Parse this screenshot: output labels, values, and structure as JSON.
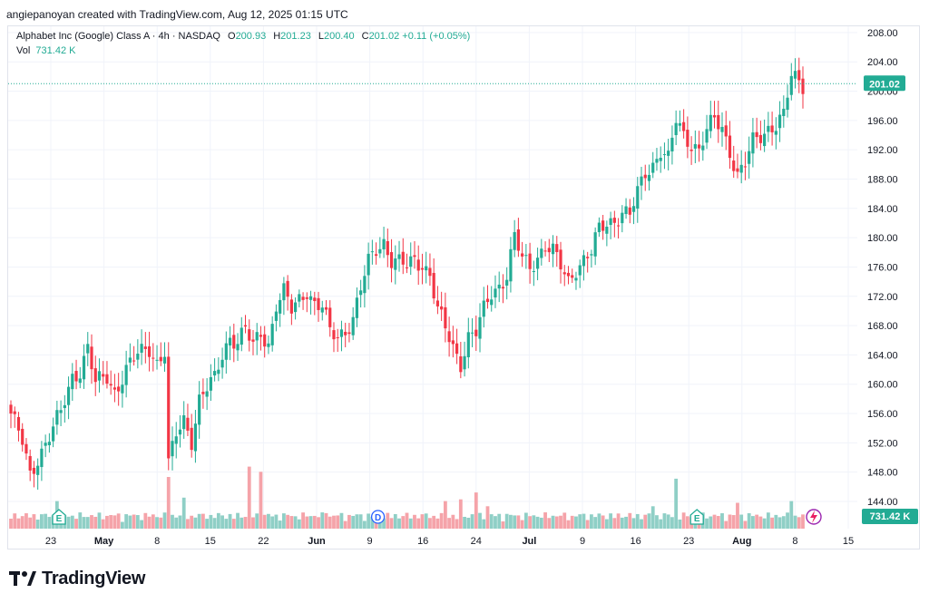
{
  "header": {
    "credit": "angiepanoyan created with TradingView.com, Aug 12, 2025 01:15 UTC"
  },
  "legend": {
    "symbol": "Alphabet Inc (Google) Class A · 4h · NASDAQ",
    "o_label": "O",
    "o_value": "200.93",
    "h_label": "H",
    "h_value": "201.23",
    "l_label": "L",
    "l_value": "200.40",
    "c_label": "C",
    "c_value": "201.02",
    "change": "+0.11 (+0.05%)",
    "vol_label": "Vol",
    "vol_value": "731.42 K"
  },
  "brand": {
    "name": "TradingView"
  },
  "colors": {
    "up": "#22ab94",
    "down": "#f23645",
    "vol_up": "#8fcfc6",
    "vol_down": "#f5a3a9",
    "grid": "#f0f3fa",
    "price_line": "#22ab94"
  },
  "chart_data": {
    "type": "candlestick",
    "title": "Alphabet Inc (Google) Class A · 4h · NASDAQ",
    "ylim": [
      140,
      210
    ],
    "y_ticks": [
      "144.00",
      "148.00",
      "152.00",
      "156.00",
      "160.00",
      "164.00",
      "168.00",
      "172.00",
      "176.00",
      "180.00",
      "184.00",
      "188.00",
      "192.00",
      "196.00",
      "200.00",
      "204.00",
      "208.00"
    ],
    "x_ticks": [
      {
        "label": "23",
        "bold": false
      },
      {
        "label": "May",
        "bold": true
      },
      {
        "label": "8",
        "bold": false
      },
      {
        "label": "15",
        "bold": false
      },
      {
        "label": "22",
        "bold": false
      },
      {
        "label": "Jun",
        "bold": true
      },
      {
        "label": "9",
        "bold": false
      },
      {
        "label": "16",
        "bold": false
      },
      {
        "label": "24",
        "bold": false
      },
      {
        "label": "Jul",
        "bold": true
      },
      {
        "label": "9",
        "bold": false
      },
      {
        "label": "16",
        "bold": false
      },
      {
        "label": "23",
        "bold": false
      },
      {
        "label": "Aug",
        "bold": true
      },
      {
        "label": "8",
        "bold": false
      },
      {
        "label": "15",
        "bold": false
      }
    ],
    "last_price": "201.02",
    "last_volume": "731.42 K",
    "events": [
      {
        "label": "E",
        "kind": "earnings",
        "x_index": 0
      },
      {
        "label": "D",
        "kind": "dividend",
        "x_index": 6
      },
      {
        "label": "E",
        "kind": "earnings",
        "x_index": 12
      }
    ],
    "anchors": [
      [
        0,
        156
      ],
      [
        3,
        152
      ],
      [
        5,
        147.5
      ],
      [
        7,
        150
      ],
      [
        10,
        153
      ],
      [
        13,
        156
      ],
      [
        16,
        161
      ],
      [
        18,
        162
      ],
      [
        20,
        165
      ],
      [
        22,
        160
      ],
      [
        25,
        161
      ],
      [
        27,
        159
      ],
      [
        30,
        162
      ],
      [
        33,
        164
      ],
      [
        36,
        165
      ],
      [
        38,
        163
      ],
      [
        40,
        164.5
      ],
      [
        41,
        149
      ],
      [
        43,
        153
      ],
      [
        45,
        155
      ],
      [
        47,
        152.5
      ],
      [
        49,
        158
      ],
      [
        51,
        159.5
      ],
      [
        53,
        160.5
      ],
      [
        55,
        164
      ],
      [
        57,
        166.5
      ],
      [
        59,
        166
      ],
      [
        61,
        167.5
      ],
      [
        63,
        165
      ],
      [
        65,
        167
      ],
      [
        67,
        165.5
      ],
      [
        69,
        171
      ],
      [
        71,
        172.5
      ],
      [
        73,
        170
      ],
      [
        75,
        171.5
      ],
      [
        77,
        173
      ],
      [
        79,
        171
      ],
      [
        81,
        170.5
      ],
      [
        83,
        167
      ],
      [
        85,
        166.5
      ],
      [
        87,
        167.5
      ],
      [
        89,
        169
      ],
      [
        91,
        173
      ],
      [
        93,
        176.5
      ],
      [
        95,
        178.5
      ],
      [
        97,
        179.5
      ],
      [
        99,
        177
      ],
      [
        101,
        176.5
      ],
      [
        103,
        176
      ],
      [
        105,
        177
      ],
      [
        107,
        176.5
      ],
      [
        109,
        175
      ],
      [
        111,
        170
      ],
      [
        113,
        167.5
      ],
      [
        115,
        165
      ],
      [
        117,
        163
      ],
      [
        119,
        166.5
      ],
      [
        121,
        167
      ],
      [
        123,
        170
      ],
      [
        125,
        172.5
      ],
      [
        127,
        173.5
      ],
      [
        129,
        175
      ],
      [
        131,
        180
      ],
      [
        133,
        177
      ],
      [
        135,
        176
      ],
      [
        137,
        177.5
      ],
      [
        139,
        179
      ],
      [
        141,
        178
      ],
      [
        143,
        176
      ],
      [
        145,
        174
      ],
      [
        147,
        176
      ],
      [
        149,
        177
      ],
      [
        151,
        178
      ],
      [
        153,
        181
      ],
      [
        155,
        182
      ],
      [
        157,
        182.5
      ],
      [
        159,
        183.5
      ],
      [
        161,
        183
      ],
      [
        163,
        186
      ],
      [
        165,
        189
      ],
      [
        167,
        190
      ],
      [
        169,
        192
      ],
      [
        171,
        190.5
      ],
      [
        173,
        196
      ],
      [
        175,
        194
      ],
      [
        177,
        193
      ],
      [
        179,
        192
      ],
      [
        181,
        194.5
      ],
      [
        183,
        196
      ],
      [
        185,
        195
      ],
      [
        187,
        192
      ],
      [
        189,
        188.5
      ],
      [
        191,
        190
      ],
      [
        193,
        193
      ],
      [
        195,
        194
      ],
      [
        197,
        195
      ],
      [
        199,
        195.5
      ],
      [
        201,
        196.5
      ],
      [
        203,
        202
      ],
      [
        205,
        201.5
      ],
      [
        206,
        201
      ]
    ],
    "volume_spikes": [
      {
        "i": 12,
        "v": 16
      },
      {
        "i": 41,
        "v": 30
      },
      {
        "i": 45,
        "v": 18
      },
      {
        "i": 62,
        "v": 36
      },
      {
        "i": 65,
        "v": 33
      },
      {
        "i": 82,
        "v": 9
      },
      {
        "i": 113,
        "v": 16
      },
      {
        "i": 117,
        "v": 17
      },
      {
        "i": 121,
        "v": 21
      },
      {
        "i": 124,
        "v": 13
      },
      {
        "i": 167,
        "v": 13
      },
      {
        "i": 173,
        "v": 29
      },
      {
        "i": 189,
        "v": 15
      },
      {
        "i": 203,
        "v": 16
      }
    ]
  }
}
